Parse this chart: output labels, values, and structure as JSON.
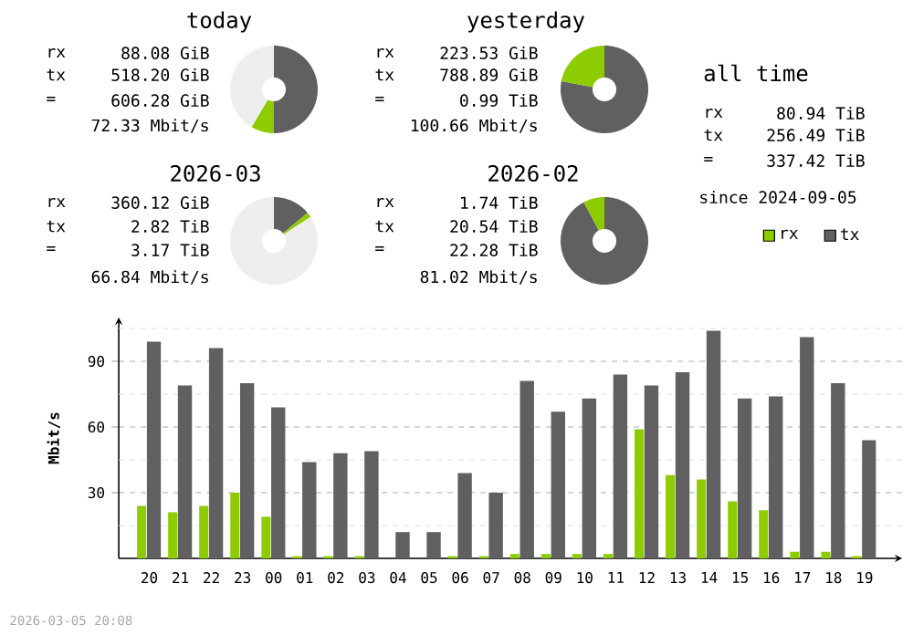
{
  "chart_data": [
    {
      "type": "donut",
      "title": "today",
      "categories": [
        null,
        null,
        null
      ],
      "values": [
        50,
        8.5,
        41.5
      ],
      "colors": [
        "#606060",
        "#8ccc00",
        "#eeeeee"
      ],
      "annotations": [
        "rx",
        "88.08 GiB",
        "tx",
        "518.20 GiB",
        "=",
        "606.28 GiB",
        "72.33 Mbit/s"
      ]
    },
    {
      "type": "donut",
      "title": "yesterday",
      "categories": [
        null,
        null
      ],
      "values": [
        78,
        22
      ],
      "colors": [
        "#606060",
        "#8ccc00"
      ],
      "annotations": [
        "rx",
        "223.53 GiB",
        "tx",
        "788.89 GiB",
        "=",
        "0.99 TiB",
        "100.66 Mbit/s"
      ]
    },
    {
      "type": "donut",
      "title": "2026-03",
      "categories": [
        null,
        null,
        null
      ],
      "values": [
        13.9,
        1.9,
        84.2
      ],
      "colors": [
        "#606060",
        "#8ccc00",
        "#eeeeee"
      ],
      "annotations": [
        "rx",
        "360.12 GiB",
        "tx",
        "2.82 TiB",
        "=",
        "3.17 TiB",
        "66.84 Mbit/s"
      ]
    },
    {
      "type": "donut",
      "title": "2026-02",
      "categories": [
        null,
        null
      ],
      "values": [
        92.2,
        7.8
      ],
      "colors": [
        "#606060",
        "#8ccc00"
      ],
      "annotations": [
        "rx",
        "1.74 TiB",
        "tx",
        "20.54 TiB",
        "=",
        "22.28 TiB",
        "81.02 Mbit/s"
      ]
    },
    {
      "type": "other",
      "title": "all time",
      "annotations": [
        "rx",
        "80.94 TiB",
        "tx",
        "256.49 TiB",
        "=",
        "337.42 TiB",
        "since 2024-09-05"
      ]
    },
    {
      "type": "bar",
      "ylabel": "Mbit/s",
      "categories": [
        "20",
        "21",
        "22",
        "23",
        "00",
        "01",
        "02",
        "03",
        "04",
        "05",
        "06",
        "07",
        "08",
        "09",
        "10",
        "11",
        "12",
        "13",
        "14",
        "15",
        "16",
        "17",
        "18",
        "19"
      ],
      "series": [
        {
          "name": "rx",
          "color": "#8ccc00",
          "values": [
            24,
            21,
            24,
            30,
            19,
            1,
            1,
            1,
            0,
            0,
            1,
            1,
            2,
            2,
            2,
            2,
            59,
            38,
            36,
            26,
            22,
            3,
            3,
            1
          ]
        },
        {
          "name": "tx",
          "color": "#606060",
          "values": [
            99,
            79,
            96,
            80,
            69,
            44,
            48,
            49,
            12,
            12,
            39,
            30,
            81,
            67,
            73,
            84,
            79,
            85,
            104,
            73,
            74,
            101,
            80,
            54
          ]
        }
      ],
      "ylim": [
        0,
        110
      ],
      "yticks": [
        {
          "value": 15,
          "label": null
        },
        30,
        {
          "value": 45,
          "label": null
        },
        60,
        {
          "value": 75,
          "label": null
        },
        90,
        {
          "value": 105,
          "label": null
        }
      ],
      "grid": "y",
      "legend": "top right",
      "annotations": [
        "2026-03-05 20:08"
      ]
    }
  ]
}
